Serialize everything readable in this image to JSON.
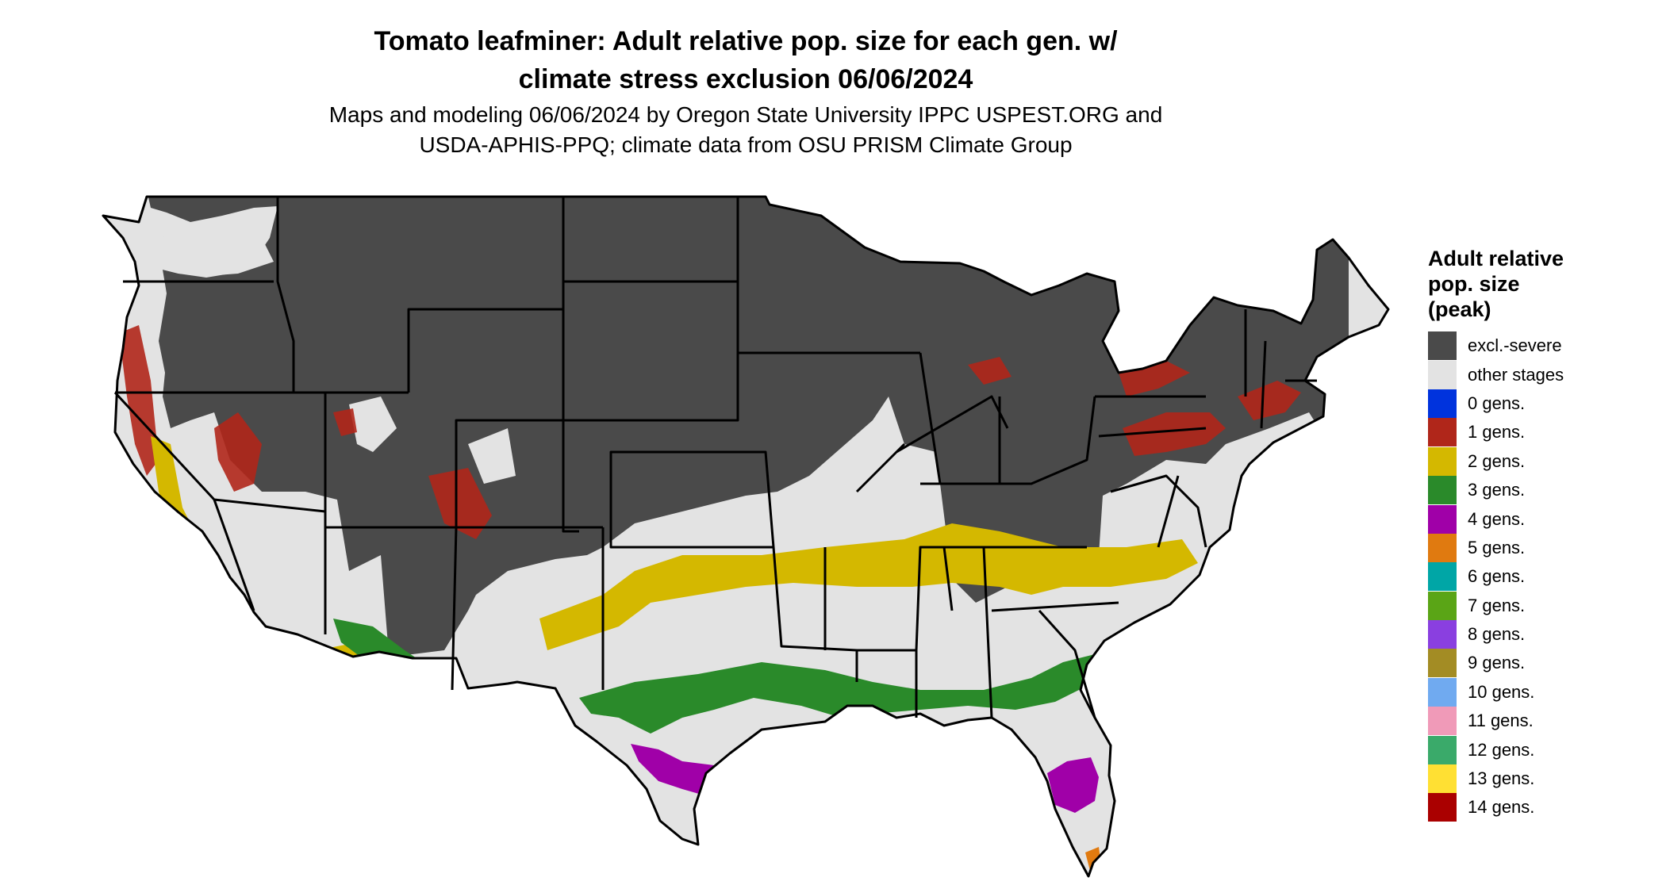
{
  "title_line1": "Tomato leafminer: Adult relative pop. size for each gen. w/",
  "title_line2": "climate stress exclusion 06/06/2024",
  "subtitle_line1": "Maps and modeling 06/06/2024 by Oregon State University IPPC USPEST.ORG and",
  "subtitle_line2": "USDA-APHIS-PPQ; climate data from OSU PRISM Climate Group",
  "legend": {
    "title_line1": "Adult relative",
    "title_line2": "pop. size",
    "title_line3": "(peak)",
    "items": [
      {
        "label": "excl.-severe",
        "color": "#4a4a4a"
      },
      {
        "label": "other stages",
        "color": "#e3e3e3"
      },
      {
        "label": "0 gens.",
        "color": "#0033dd"
      },
      {
        "label": "1 gens.",
        "color": "#b0261a"
      },
      {
        "label": "2 gens.",
        "color": "#d4b800"
      },
      {
        "label": "3 gens.",
        "color": "#2a8a2a"
      },
      {
        "label": "4 gens.",
        "color": "#a000a8"
      },
      {
        "label": "5 gens.",
        "color": "#e07a10"
      },
      {
        "label": "6 gens.",
        "color": "#00a6a6"
      },
      {
        "label": "7 gens.",
        "color": "#5aa516"
      },
      {
        "label": "8 gens.",
        "color": "#8a3fe0"
      },
      {
        "label": "9 gens.",
        "color": "#a38c24"
      },
      {
        "label": "10 gens.",
        "color": "#70aaf0"
      },
      {
        "label": "11 gens.",
        "color": "#f09ab8"
      },
      {
        "label": "12 gens.",
        "color": "#3aaa6a"
      },
      {
        "label": "13 gens.",
        "color": "#ffe033"
      },
      {
        "label": "14 gens.",
        "color": "#aa0000"
      }
    ]
  }
}
